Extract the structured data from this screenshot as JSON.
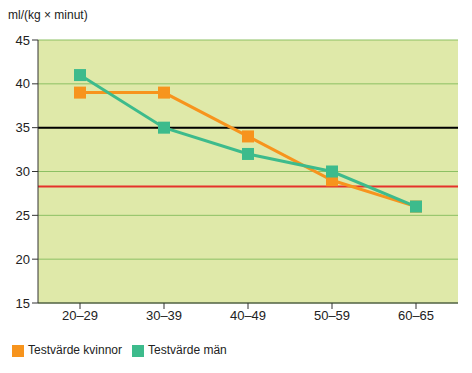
{
  "chart_data": {
    "type": "line",
    "y_label": "ml/(kg × minut)",
    "categories": [
      "20–29",
      "30–39",
      "40–49",
      "50–59",
      "60–65"
    ],
    "series": [
      {
        "name": "Testvärde kvinnor",
        "color": "#f7941d",
        "marker": "square",
        "values": [
          39,
          39,
          34,
          29,
          26
        ]
      },
      {
        "name": "Testvärde män",
        "color": "#3dbb8c",
        "marker": "square",
        "values": [
          41,
          35,
          32,
          30,
          26
        ]
      }
    ],
    "ylim": [
      15,
      45
    ],
    "yticks": [
      15,
      20,
      25,
      30,
      35,
      40,
      45
    ],
    "grid": true,
    "legend": "bottom",
    "reference_lines": [
      {
        "value": 35,
        "color": "#000000"
      },
      {
        "value": 28.3,
        "color": "#e5322b"
      }
    ]
  }
}
